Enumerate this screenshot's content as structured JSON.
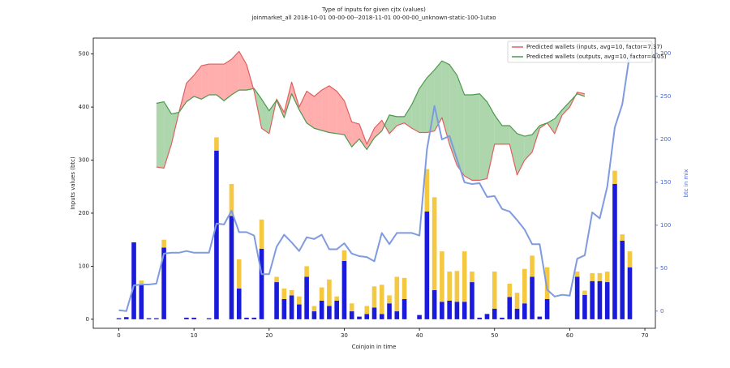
{
  "chart_data": {
    "type": "line",
    "title": "Type of inputs for given cjtx (values)",
    "subtitle": "joinmarket_all 2018-10-01 00-00-00--2018-11-01 00-00-00_unknown-static-100-1utxo",
    "x_label": "Coinjoin in time",
    "y_label": "Inputs values (btc)",
    "y2_label": "btc in mix",
    "x": [
      0,
      1,
      2,
      3,
      4,
      5,
      6,
      7,
      8,
      9,
      10,
      11,
      12,
      13,
      14,
      15,
      16,
      17,
      18,
      19,
      20,
      21,
      22,
      23,
      24,
      25,
      26,
      27,
      28,
      29,
      30,
      31,
      32,
      33,
      34,
      35,
      36,
      37,
      38,
      39,
      40,
      41,
      42,
      43,
      44,
      45,
      46,
      47,
      48,
      49,
      50,
      51,
      52,
      53,
      54,
      55,
      56,
      57,
      58,
      59,
      60,
      61,
      62,
      63,
      64,
      65,
      66,
      67,
      68
    ],
    "xlim": [
      -3.4,
      71.4
    ],
    "xticks": [
      0,
      10,
      20,
      30,
      40,
      50,
      60,
      70
    ],
    "ylim": [
      -17,
      530
    ],
    "yticks": [
      0,
      100,
      200,
      300,
      400,
      500
    ],
    "y2lim": [
      -20,
      318
    ],
    "y2ticks": [
      0,
      50,
      100,
      150,
      200,
      250,
      300
    ],
    "y2_color": "#4466dd",
    "legend": "upper right",
    "series": [
      {
        "name": "Predicted wallets (inputs, avg=10, factor=7.37)",
        "color": "#e06060",
        "fill": "#ff9999",
        "values": [
          null,
          null,
          null,
          null,
          null,
          287,
          285,
          330,
          390,
          445,
          460,
          478,
          481,
          481,
          481,
          490,
          505,
          480,
          430,
          360,
          350,
          415,
          390,
          447,
          400,
          430,
          420,
          432,
          440,
          430,
          412,
          372,
          368,
          330,
          360,
          375,
          350,
          365,
          370,
          360,
          352,
          352,
          355,
          380,
          330,
          290,
          270,
          262,
          262,
          265,
          330,
          330,
          330,
          272,
          300,
          315,
          360,
          370,
          350,
          385,
          400,
          428,
          425,
          null,
          null,
          null,
          null,
          null,
          null
        ]
      },
      {
        "name": "Predicted wallets (outputs, avg=10, factor=4.05)",
        "color": "#4a9a4a",
        "fill": "#99cc99",
        "values": [
          null,
          null,
          null,
          null,
          null,
          407,
          410,
          387,
          390,
          410,
          420,
          415,
          423,
          423,
          412,
          423,
          432,
          432,
          435,
          415,
          393,
          413,
          380,
          425,
          395,
          370,
          360,
          356,
          352,
          350,
          348,
          325,
          340,
          320,
          342,
          355,
          385,
          382,
          382,
          405,
          435,
          455,
          470,
          487,
          480,
          460,
          423,
          423,
          425,
          410,
          385,
          365,
          365,
          350,
          345,
          348,
          365,
          370,
          378,
          395,
          410,
          425,
          420,
          null,
          null,
          null,
          null,
          null,
          null
        ]
      }
    ],
    "btc_in_mix": {
      "color": "#7f9be0",
      "axis": "y2",
      "values": [
        1,
        0,
        30,
        31,
        31,
        32,
        67,
        68,
        68,
        70,
        68,
        68,
        68,
        102,
        101,
        117,
        92,
        92,
        88,
        43,
        43,
        75,
        89,
        80,
        70,
        86,
        84,
        89,
        72,
        72,
        79,
        67,
        64,
        63,
        58,
        91,
        78,
        91,
        91,
        91,
        88,
        188,
        239,
        200,
        204,
        177,
        150,
        148,
        149,
        133,
        134,
        119,
        116,
        106,
        95,
        78,
        78,
        25,
        17,
        19,
        18,
        61,
        65,
        115,
        108,
        145,
        214,
        241,
        300
      ]
    },
    "bars": [
      {
        "color": "#1a1adb",
        "values": [
          2,
          4,
          145,
          65,
          2,
          2,
          135,
          0,
          0,
          3,
          3,
          0,
          2,
          318,
          0,
          195,
          58,
          3,
          3,
          133,
          0,
          70,
          38,
          45,
          28,
          80,
          15,
          35,
          25,
          35,
          110,
          15,
          5,
          10,
          22,
          10,
          30,
          15,
          38,
          0,
          8,
          203,
          55,
          33,
          35,
          33,
          33,
          70,
          3,
          10,
          20,
          3,
          42,
          20,
          30,
          80,
          5,
          38,
          0,
          0,
          0,
          80,
          46,
          72,
          72,
          70,
          255,
          148,
          98
        ]
      },
      {
        "color": "#f5c842",
        "values": [
          0,
          0,
          0,
          8,
          0,
          0,
          15,
          0,
          0,
          0,
          0,
          0,
          0,
          25,
          0,
          60,
          55,
          0,
          0,
          55,
          0,
          10,
          20,
          10,
          15,
          20,
          10,
          25,
          50,
          8,
          20,
          15,
          0,
          15,
          40,
          55,
          15,
          65,
          40,
          0,
          0,
          80,
          175,
          95,
          55,
          58,
          95,
          20,
          0,
          0,
          70,
          0,
          25,
          30,
          65,
          40,
          0,
          60,
          0,
          0,
          0,
          10,
          8,
          15,
          15,
          20,
          25,
          12,
          30
        ]
      }
    ]
  }
}
